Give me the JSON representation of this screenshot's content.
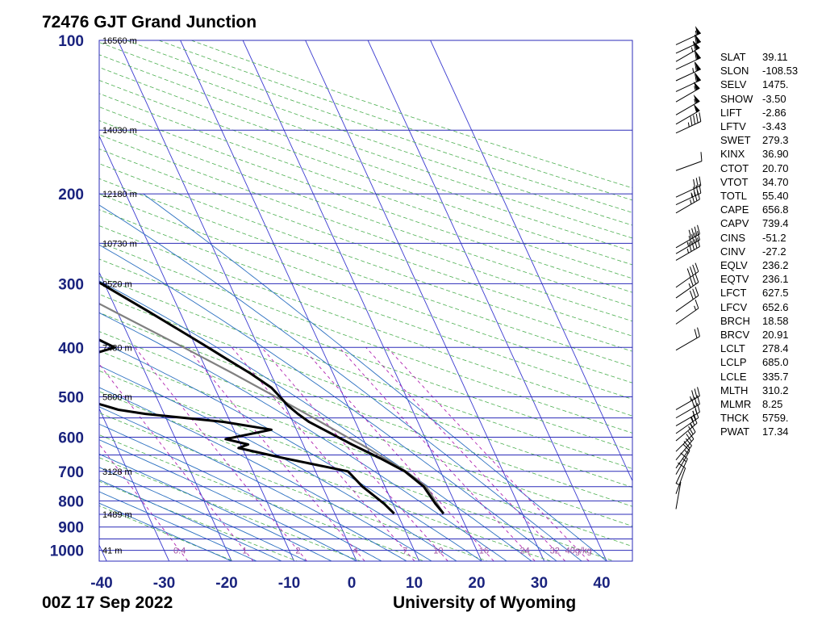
{
  "chart_data": {
    "type": "skew-t",
    "title": "72476 GJT Grand Junction",
    "footer_left": "00Z 17 Sep 2022",
    "footer_right": "University of Wyoming",
    "pressure_ticks": [
      "100",
      "200",
      "300",
      "400",
      "500",
      "600",
      "700",
      "800",
      "900",
      "1000"
    ],
    "temperature_ticks": [
      "-40",
      "-30",
      "-20",
      "-10",
      "0",
      "10",
      "20",
      "30",
      "40"
    ],
    "xlim": [
      -40,
      45
    ],
    "ylim": [
      1050,
      100
    ],
    "height_labels": [
      {
        "p": 100,
        "label": "16560 m"
      },
      {
        "p": 150,
        "label": "14030 m"
      },
      {
        "p": 200,
        "label": "12180 m"
      },
      {
        "p": 250,
        "label": "10730 m"
      },
      {
        "p": 300,
        "label": "9520 m"
      },
      {
        "p": 400,
        "label": "7480 m"
      },
      {
        "p": 500,
        "label": "5800 m"
      },
      {
        "p": 700,
        "label": "3128 m"
      },
      {
        "p": 850,
        "label": "1489 m"
      },
      {
        "p": 1000,
        "label": "41 m"
      }
    ],
    "mixing_ratio_labels": [
      "0.4",
      "1",
      "2",
      "4",
      "7",
      "10",
      "16",
      "24",
      "32",
      "40g/kg"
    ],
    "temperature_profile": [
      [
        847,
        17.4
      ],
      [
        810,
        16.8
      ],
      [
        750,
        16.2
      ],
      [
        700,
        14.3
      ],
      [
        660,
        11.3
      ],
      [
        620,
        7.8
      ],
      [
        580,
        4.4
      ],
      [
        560,
        2.6
      ],
      [
        540,
        1.4
      ],
      [
        520,
        0.4
      ],
      [
        500,
        -0.2
      ],
      [
        480,
        -0.9
      ],
      [
        450,
        -3.2
      ],
      [
        420,
        -6.1
      ],
      [
        400,
        -8.1
      ],
      [
        370,
        -11.4
      ],
      [
        340,
        -15.0
      ],
      [
        300,
        -20.5
      ],
      [
        270,
        -25.6
      ],
      [
        250,
        -28.5
      ],
      [
        235,
        -29.5
      ],
      [
        220,
        -31.0
      ],
      [
        205,
        -35.0
      ],
      [
        200,
        -37.0
      ],
      [
        170,
        -44.0
      ],
      [
        150,
        -48.5
      ],
      [
        130,
        -53.0
      ],
      [
        115,
        -56.5
      ],
      [
        104,
        -59.0
      ],
      [
        100,
        -59.5
      ]
    ],
    "dewpoint_profile": [
      [
        847,
        9.5
      ],
      [
        810,
        8.6
      ],
      [
        750,
        6.4
      ],
      [
        700,
        5.2
      ],
      [
        660,
        -4.0
      ],
      [
        630,
        -10.6
      ],
      [
        620,
        -8.8
      ],
      [
        605,
        -12.0
      ],
      [
        580,
        -4.0
      ],
      [
        560,
        -11.0
      ],
      [
        540,
        -23.0
      ],
      [
        530,
        -27.0
      ],
      [
        500,
        -33.0
      ],
      [
        472,
        -45.2
      ],
      [
        460,
        -42.0
      ],
      [
        400,
        -23.0
      ],
      [
        360,
        -29.0
      ],
      [
        300,
        -37.0
      ],
      [
        270,
        -44.0
      ],
      [
        250,
        -48.0
      ],
      [
        230,
        -50.5
      ],
      [
        220,
        -52.5
      ],
      [
        200,
        -55.0
      ],
      [
        150,
        -66.5
      ],
      [
        120,
        -72.0
      ],
      [
        108,
        -75.5
      ],
      [
        100,
        -78.0
      ]
    ],
    "parcel_profile": [
      [
        847,
        17.4
      ],
      [
        800,
        17.0
      ],
      [
        750,
        16.6
      ],
      [
        700,
        14.5
      ],
      [
        660,
        12.0
      ],
      [
        620,
        9.3
      ],
      [
        600,
        7.6
      ],
      [
        550,
        3.6
      ],
      [
        500,
        -0.9
      ],
      [
        450,
        -6.0
      ],
      [
        400,
        -12.0
      ],
      [
        350,
        -19.0
      ],
      [
        300,
        -27.0
      ],
      [
        250,
        -35.5
      ],
      [
        230,
        -39.5
      ],
      [
        200,
        -46.0
      ],
      [
        180,
        -51.0
      ],
      [
        150,
        -58.5
      ],
      [
        130,
        -64.0
      ],
      [
        114,
        -69.0
      ],
      [
        100,
        -74.0
      ]
    ],
    "wind_barbs": [
      {
        "p": 102,
        "dir": 245,
        "spd": 55
      },
      {
        "p": 106,
        "dir": 245,
        "spd": 60
      },
      {
        "p": 110,
        "dir": 240,
        "spd": 65
      },
      {
        "p": 114,
        "dir": 245,
        "spd": 60
      },
      {
        "p": 120,
        "dir": 245,
        "spd": 65
      },
      {
        "p": 126,
        "dir": 245,
        "spd": 60
      },
      {
        "p": 132,
        "dir": 240,
        "spd": 55
      },
      {
        "p": 140,
        "dir": 240,
        "spd": 55
      },
      {
        "p": 146,
        "dir": 240,
        "spd": 50
      },
      {
        "p": 152,
        "dir": 245,
        "spd": 45
      },
      {
        "p": 180,
        "dir": 250,
        "spd": 10
      },
      {
        "p": 203,
        "dir": 245,
        "spd": 30
      },
      {
        "p": 210,
        "dir": 245,
        "spd": 35
      },
      {
        "p": 218,
        "dir": 240,
        "spd": 35
      },
      {
        "p": 255,
        "dir": 240,
        "spd": 40
      },
      {
        "p": 262,
        "dir": 240,
        "spd": 45
      },
      {
        "p": 270,
        "dir": 240,
        "spd": 45
      },
      {
        "p": 305,
        "dir": 235,
        "spd": 40
      },
      {
        "p": 320,
        "dir": 235,
        "spd": 35
      },
      {
        "p": 340,
        "dir": 235,
        "spd": 30
      },
      {
        "p": 360,
        "dir": 235,
        "spd": 15
      },
      {
        "p": 405,
        "dir": 240,
        "spd": 20
      },
      {
        "p": 530,
        "dir": 240,
        "spd": 35
      },
      {
        "p": 550,
        "dir": 240,
        "spd": 30
      },
      {
        "p": 570,
        "dir": 240,
        "spd": 25
      },
      {
        "p": 590,
        "dir": 235,
        "spd": 25
      },
      {
        "p": 610,
        "dir": 230,
        "spd": 25
      },
      {
        "p": 640,
        "dir": 225,
        "spd": 20
      },
      {
        "p": 665,
        "dir": 220,
        "spd": 20
      },
      {
        "p": 690,
        "dir": 215,
        "spd": 20
      },
      {
        "p": 710,
        "dir": 210,
        "spd": 15
      },
      {
        "p": 740,
        "dir": 205,
        "spd": 15
      },
      {
        "p": 775,
        "dir": 200,
        "spd": 10
      },
      {
        "p": 830,
        "dir": 190,
        "spd": 5
      }
    ],
    "indices": [
      {
        "name": "SLAT",
        "value": "39.11"
      },
      {
        "name": "SLON",
        "value": "-108.53"
      },
      {
        "name": "SELV",
        "value": "1475."
      },
      {
        "name": "SHOW",
        "value": "-3.50"
      },
      {
        "name": "LIFT",
        "value": "-2.86"
      },
      {
        "name": "LFTV",
        "value": "-3.43"
      },
      {
        "name": "SWET",
        "value": "279.3"
      },
      {
        "name": "KINX",
        "value": "36.90"
      },
      {
        "name": "CTOT",
        "value": "20.70"
      },
      {
        "name": "VTOT",
        "value": "34.70"
      },
      {
        "name": "TOTL",
        "value": "55.40"
      },
      {
        "name": "CAPE",
        "value": "656.8"
      },
      {
        "name": "CAPV",
        "value": "739.4"
      },
      {
        "name": "CINS",
        "value": "-51.2"
      },
      {
        "name": "CINV",
        "value": "-27.2"
      },
      {
        "name": "EQLV",
        "value": "236.2"
      },
      {
        "name": "EQTV",
        "value": "236.1"
      },
      {
        "name": "LFCT",
        "value": "627.5"
      },
      {
        "name": "LFCV",
        "value": "652.6"
      },
      {
        "name": "BRCH",
        "value": "18.58"
      },
      {
        "name": "BRCV",
        "value": "20.91"
      },
      {
        "name": "LCLT",
        "value": "278.4"
      },
      {
        "name": "LCLP",
        "value": "685.0"
      },
      {
        "name": "LCLE",
        "value": "335.7"
      },
      {
        "name": "MLTH",
        "value": "310.2"
      },
      {
        "name": "MLMR",
        "value": "8.25"
      },
      {
        "name": "THCK",
        "value": "5759."
      },
      {
        "name": "PWAT",
        "value": "17.34"
      }
    ],
    "colors": {
      "axis_label": "#1a237e",
      "isobar": "#2b2bb8",
      "isotherm": "#3a3ad0",
      "dry_adiabat": "#4caf50",
      "moist_adiabat": "#2a6fc0",
      "mixing_ratio": "#b020b0",
      "parcel": "#808080",
      "profile": "#000000",
      "mixing_label": "#a050a0"
    }
  }
}
